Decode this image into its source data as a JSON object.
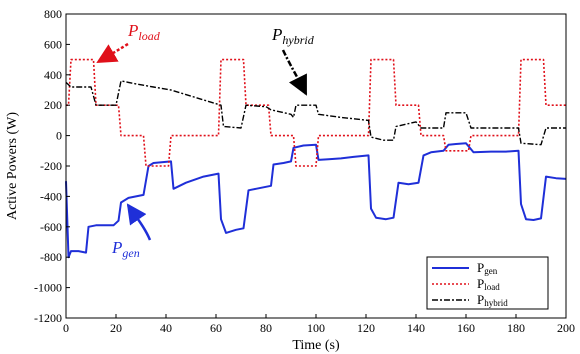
{
  "chart_data": {
    "type": "line",
    "xlabel": "Time (s)",
    "ylabel": "Active Powers (W)",
    "xlim": [
      0,
      200
    ],
    "ylim": [
      -1200,
      800
    ],
    "xticks": [
      "0",
      "20",
      "40",
      "60",
      "80",
      "100",
      "120",
      "140",
      "160",
      "180",
      "200"
    ],
    "yticks": [
      "800",
      "600",
      "400",
      "200",
      "0",
      "-200",
      "-400",
      "-600",
      "-800",
      "-1000",
      "-1200"
    ],
    "grid": false,
    "legend_position": "bottom-right",
    "colors": {
      "gen": "#1f2fd8",
      "load": "#e0101a",
      "hybrid": "#000000"
    },
    "series": [
      {
        "key": "gen",
        "name": "P_gen",
        "points": [
          [
            0,
            -300
          ],
          [
            1,
            -800
          ],
          [
            2,
            -760
          ],
          [
            5,
            -760
          ],
          [
            8,
            -770
          ],
          [
            9,
            -600
          ],
          [
            12,
            -590
          ],
          [
            19,
            -590
          ],
          [
            21,
            -560
          ],
          [
            22,
            -440
          ],
          [
            25,
            -410
          ],
          [
            31,
            -390
          ],
          [
            33,
            -200
          ],
          [
            35,
            -180
          ],
          [
            42,
            -170
          ],
          [
            43,
            -350
          ],
          [
            48,
            -310
          ],
          [
            55,
            -270
          ],
          [
            61,
            -250
          ],
          [
            62,
            -550
          ],
          [
            64,
            -640
          ],
          [
            68,
            -620
          ],
          [
            71,
            -610
          ],
          [
            73,
            -360
          ],
          [
            76,
            -350
          ],
          [
            82,
            -330
          ],
          [
            83,
            -190
          ],
          [
            87,
            -180
          ],
          [
            90,
            -170
          ],
          [
            91,
            -80
          ],
          [
            95,
            -65
          ],
          [
            100,
            -60
          ],
          [
            101,
            -160
          ],
          [
            105,
            -155
          ],
          [
            110,
            -150
          ],
          [
            115,
            -140
          ],
          [
            121,
            -130
          ],
          [
            122,
            -480
          ],
          [
            124,
            -540
          ],
          [
            128,
            -550
          ],
          [
            131,
            -540
          ],
          [
            133,
            -310
          ],
          [
            137,
            -320
          ],
          [
            141,
            -310
          ],
          [
            143,
            -130
          ],
          [
            146,
            -110
          ],
          [
            151,
            -100
          ],
          [
            153,
            -60
          ],
          [
            156,
            -55
          ],
          [
            160,
            -50
          ],
          [
            163,
            -110
          ],
          [
            170,
            -105
          ],
          [
            176,
            -105
          ],
          [
            181,
            -100
          ],
          [
            182,
            -450
          ],
          [
            184,
            -550
          ],
          [
            187,
            -555
          ],
          [
            190,
            -545
          ],
          [
            192,
            -270
          ],
          [
            196,
            -280
          ],
          [
            200,
            -285
          ]
        ]
      },
      {
        "key": "load",
        "name": "P_load",
        "points": [
          [
            0,
            200
          ],
          [
            1,
            200
          ],
          [
            2,
            500
          ],
          [
            11,
            500
          ],
          [
            12,
            200
          ],
          [
            21,
            200
          ],
          [
            22,
            0
          ],
          [
            31,
            0
          ],
          [
            32,
            -200
          ],
          [
            41,
            -200
          ],
          [
            42,
            0
          ],
          [
            61,
            0
          ],
          [
            62,
            500
          ],
          [
            71,
            500
          ],
          [
            72,
            200
          ],
          [
            81,
            200
          ],
          [
            82,
            0
          ],
          [
            91,
            0
          ],
          [
            92,
            -200
          ],
          [
            100,
            -200
          ],
          [
            101,
            0
          ],
          [
            121,
            0
          ],
          [
            122,
            500
          ],
          [
            131,
            500
          ],
          [
            132,
            200
          ],
          [
            141,
            200
          ],
          [
            142,
            0
          ],
          [
            151,
            0
          ],
          [
            152,
            -100
          ],
          [
            161,
            -100
          ],
          [
            162,
            0
          ],
          [
            181,
            0
          ],
          [
            182,
            500
          ],
          [
            191,
            500
          ],
          [
            192,
            200
          ],
          [
            200,
            200
          ]
        ]
      },
      {
        "key": "hybrid",
        "name": "P_hybrid",
        "points": [
          [
            0,
            350
          ],
          [
            2,
            320
          ],
          [
            10,
            320
          ],
          [
            12,
            200
          ],
          [
            18,
            200
          ],
          [
            20,
            200
          ],
          [
            22,
            360
          ],
          [
            28,
            340
          ],
          [
            35,
            320
          ],
          [
            42,
            300
          ],
          [
            50,
            260
          ],
          [
            58,
            220
          ],
          [
            62,
            200
          ],
          [
            63,
            60
          ],
          [
            70,
            50
          ],
          [
            72,
            200
          ],
          [
            80,
            190
          ],
          [
            82,
            170
          ],
          [
            90,
            140
          ],
          [
            91,
            120
          ],
          [
            92,
            200
          ],
          [
            100,
            200
          ],
          [
            101,
            140
          ],
          [
            110,
            120
          ],
          [
            121,
            100
          ],
          [
            122,
            -10
          ],
          [
            127,
            -30
          ],
          [
            131,
            -30
          ],
          [
            132,
            60
          ],
          [
            140,
            90
          ],
          [
            142,
            50
          ],
          [
            151,
            50
          ],
          [
            152,
            150
          ],
          [
            160,
            150
          ],
          [
            162,
            50
          ],
          [
            170,
            50
          ],
          [
            181,
            50
          ],
          [
            182,
            -50
          ],
          [
            190,
            -60
          ],
          [
            192,
            50
          ],
          [
            200,
            50
          ]
        ]
      }
    ],
    "annotations": {
      "load": "P",
      "load_sub": "load",
      "hybrid": "P",
      "hybrid_sub": "hybrid",
      "gen": "P",
      "gen_sub": "gen"
    },
    "legend": {
      "gen": "P",
      "gen_sub": "gen",
      "load": "P",
      "load_sub": "load",
      "hybrid": "P",
      "hybrid_sub": "hybrid"
    }
  }
}
